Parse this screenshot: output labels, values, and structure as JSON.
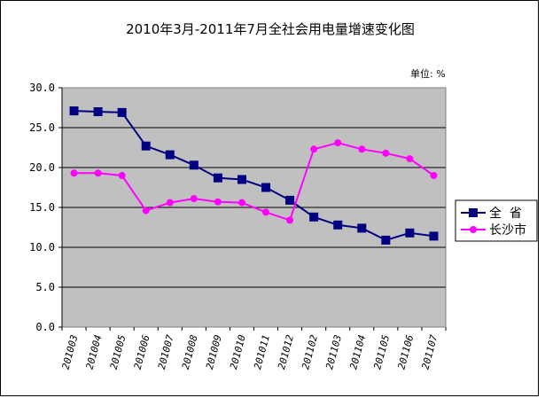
{
  "chart_data": {
    "type": "line",
    "title": "2010年3月-2011年7月全社会用电量增速变化图",
    "unit_label": "单位: %",
    "categories": [
      "201003",
      "201004",
      "201005",
      "201006",
      "201007",
      "201008",
      "201009",
      "201010",
      "201011",
      "201012",
      "201102",
      "201103",
      "201104",
      "201105",
      "201106",
      "201107"
    ],
    "series": [
      {
        "name": "全  省",
        "color": "#000080",
        "marker": "square",
        "values": [
          27.1,
          27.0,
          26.9,
          22.7,
          21.6,
          20.3,
          18.7,
          18.5,
          17.5,
          15.9,
          13.8,
          12.8,
          12.4,
          10.9,
          11.8,
          11.4
        ]
      },
      {
        "name": "长沙市",
        "color": "#ff00ff",
        "marker": "circle",
        "values": [
          19.3,
          19.3,
          19.0,
          14.6,
          15.6,
          16.1,
          15.7,
          15.6,
          14.4,
          13.4,
          22.3,
          23.1,
          22.3,
          21.8,
          21.1,
          19.0
        ]
      }
    ],
    "yticks": [
      "30.0",
      "25.0",
      "20.0",
      "15.0",
      "10.0",
      "5.0",
      "0.0"
    ],
    "ylim": [
      0,
      30
    ],
    "grid": true,
    "legend_position": "right",
    "plot_background": "#c0c0c0"
  }
}
